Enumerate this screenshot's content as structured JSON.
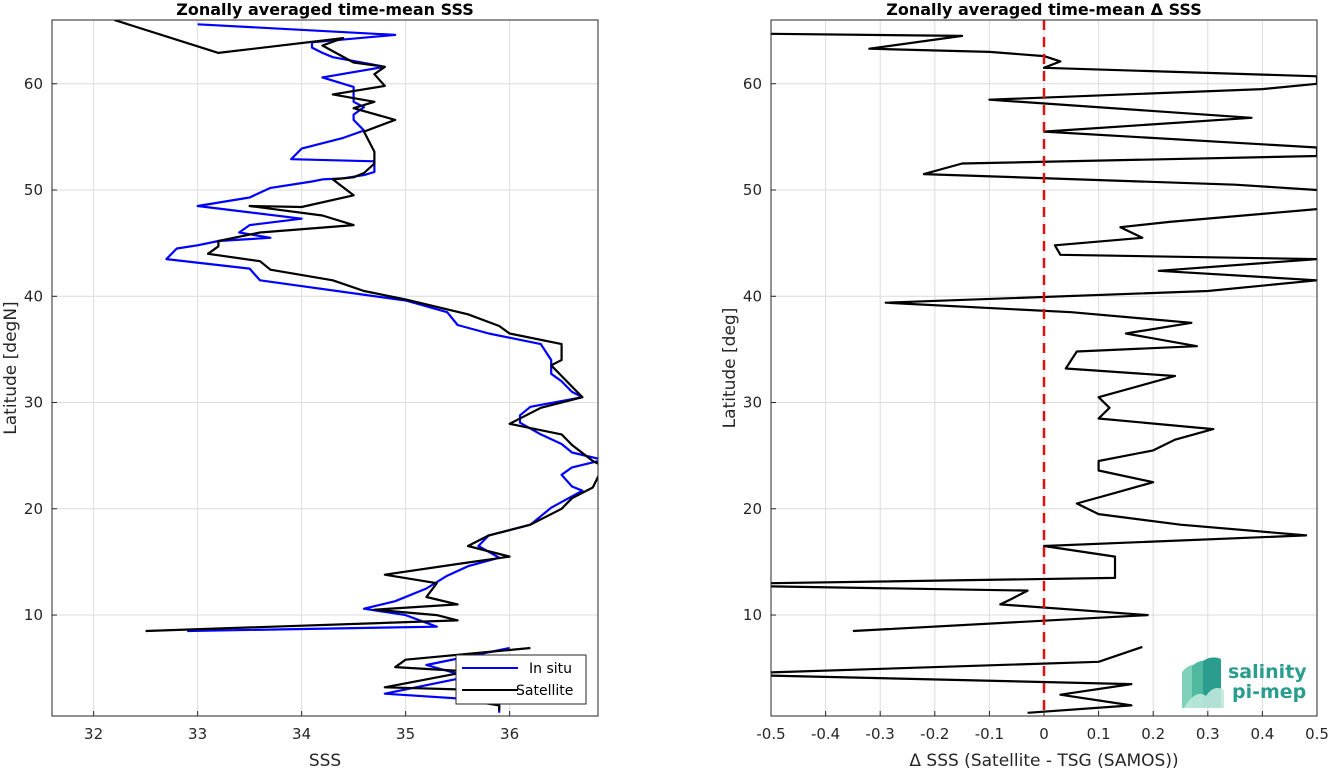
{
  "chart_data": [
    {
      "type": "line",
      "title": "Zonally averaged time-mean SSS",
      "xlabel": "SSS",
      "ylabel": "Latitude [degN]",
      "xlim": [
        31.6,
        36.85
      ],
      "ylim": [
        0.5,
        66
      ],
      "xticks": [
        "32",
        "33",
        "34",
        "35",
        "36"
      ],
      "yticks": [
        "10",
        "20",
        "30",
        "40",
        "50",
        "60"
      ],
      "grid": true,
      "legend": "bottom-right",
      "series": [
        {
          "name": "In situ",
          "color": "#0000ff",
          "segments": [
            [
              [
                33.0,
                65.6
              ],
              [
                34.9,
                64.6
              ],
              [
                34.1,
                63.9
              ],
              [
                34.1,
                63.4
              ],
              [
                34.2,
                62.9
              ],
              [
                34.3,
                62.5
              ],
              [
                34.8,
                61.6
              ],
              [
                34.2,
                60.6
              ],
              [
                34.5,
                59.7
              ],
              [
                34.5,
                58.3
              ],
              [
                34.6,
                57.8
              ],
              [
                34.5,
                57.1
              ],
              [
                34.5,
                56.6
              ],
              [
                34.6,
                55.6
              ],
              [
                34.4,
                54.9
              ],
              [
                34.0,
                53.9
              ],
              [
                33.9,
                52.9
              ],
              [
                34.7,
                52.7
              ],
              [
                34.7,
                51.7
              ],
              [
                34.6,
                51.4
              ],
              [
                34.4,
                51.1
              ],
              [
                34.2,
                51.0
              ],
              [
                34.1,
                50.8
              ],
              [
                33.7,
                50.2
              ],
              [
                33.5,
                49.3
              ],
              [
                33.0,
                48.5
              ],
              [
                34.0,
                47.3
              ],
              [
                33.5,
                46.7
              ],
              [
                33.4,
                46.0
              ],
              [
                33.7,
                45.5
              ],
              [
                33.2,
                45.2
              ],
              [
                33.0,
                44.8
              ],
              [
                32.8,
                44.5
              ],
              [
                32.7,
                43.5
              ],
              [
                33.5,
                42.6
              ],
              [
                33.6,
                41.5
              ],
              [
                35.0,
                39.6
              ],
              [
                35.4,
                38.5
              ],
              [
                35.5,
                37.3
              ],
              [
                35.8,
                36.5
              ],
              [
                36.0,
                36.1
              ],
              [
                36.3,
                35.5
              ],
              [
                36.4,
                34.0
              ],
              [
                36.4,
                33.2
              ],
              [
                36.4,
                32.7
              ],
              [
                36.5,
                32.0
              ],
              [
                36.6,
                31.0
              ],
              [
                36.7,
                30.5
              ],
              [
                36.2,
                29.6
              ],
              [
                36.1,
                28.8
              ],
              [
                36.1,
                28.1
              ],
              [
                36.3,
                27.0
              ],
              [
                36.5,
                26.1
              ],
              [
                36.6,
                25.3
              ],
              [
                36.9,
                24.6
              ],
              [
                36.6,
                23.9
              ],
              [
                36.5,
                23.2
              ],
              [
                36.6,
                22.1
              ],
              [
                36.7,
                21.7
              ],
              [
                36.4,
                20.1
              ],
              [
                36.2,
                18.5
              ],
              [
                35.8,
                17.5
              ],
              [
                35.7,
                16.5
              ],
              [
                35.9,
                15.4
              ],
              [
                35.6,
                14.6
              ],
              [
                35.4,
                13.7
              ],
              [
                35.2,
                12.5
              ],
              [
                34.9,
                11.3
              ],
              [
                34.6,
                10.6
              ],
              [
                35.0,
                10.0
              ],
              [
                35.3,
                8.9
              ],
              [
                32.9,
                8.5
              ]
            ],
            [
              [
                36.0,
                6.9
              ],
              [
                35.2,
                5.3
              ],
              [
                35.6,
                4.2
              ],
              [
                34.8,
                2.6
              ],
              [
                35.9,
                1.9
              ],
              [
                35.9,
                1.3
              ],
              [
                35.9,
                0.8
              ]
            ]
          ]
        },
        {
          "name": "Satellite",
          "color": "#000000",
          "segments": [
            [
              [
                32.2,
                66.0
              ],
              [
                33.2,
                62.9
              ],
              [
                34.4,
                64.3
              ],
              [
                34.2,
                63.6
              ],
              [
                34.5,
                62.0
              ],
              [
                34.8,
                61.6
              ],
              [
                34.7,
                60.9
              ],
              [
                34.8,
                59.8
              ],
              [
                34.3,
                59.0
              ],
              [
                34.7,
                58.3
              ],
              [
                34.5,
                57.7
              ],
              [
                34.9,
                56.6
              ],
              [
                34.6,
                55.5
              ],
              [
                34.7,
                53.6
              ],
              [
                34.7,
                52.5
              ],
              [
                34.6,
                51.6
              ],
              [
                34.5,
                51.2
              ],
              [
                34.3,
                51.0
              ],
              [
                34.5,
                49.5
              ],
              [
                34.0,
                48.4
              ],
              [
                33.5,
                48.5
              ],
              [
                34.2,
                47.6
              ],
              [
                34.5,
                46.7
              ],
              [
                33.6,
                46.0
              ],
              [
                33.2,
                45.2
              ],
              [
                33.2,
                44.7
              ],
              [
                33.1,
                44.0
              ],
              [
                33.6,
                43.3
              ],
              [
                33.7,
                42.5
              ],
              [
                34.3,
                41.5
              ],
              [
                34.6,
                40.5
              ],
              [
                35.0,
                39.7
              ],
              [
                35.6,
                38.3
              ],
              [
                35.9,
                37.2
              ],
              [
                36.0,
                36.5
              ],
              [
                36.5,
                35.5
              ],
              [
                36.5,
                34.0
              ],
              [
                36.4,
                33.5
              ],
              [
                36.5,
                32.5
              ],
              [
                36.6,
                31.5
              ],
              [
                36.7,
                30.5
              ],
              [
                36.3,
                29.5
              ],
              [
                36.0,
                28.0
              ],
              [
                36.5,
                27.0
              ],
              [
                36.6,
                26.0
              ],
              [
                36.8,
                24.5
              ],
              [
                36.9,
                24.0
              ],
              [
                36.8,
                22.0
              ],
              [
                36.6,
                21.0
              ],
              [
                36.5,
                20.0
              ],
              [
                36.2,
                18.5
              ],
              [
                35.8,
                17.5
              ],
              [
                35.6,
                16.5
              ],
              [
                36.0,
                15.5
              ],
              [
                35.5,
                14.8
              ],
              [
                34.8,
                13.8
              ],
              [
                35.3,
                13.0
              ],
              [
                35.2,
                11.7
              ],
              [
                35.5,
                11.0
              ],
              [
                34.7,
                10.5
              ],
              [
                35.3,
                10.0
              ],
              [
                35.5,
                9.5
              ],
              [
                32.5,
                8.5
              ]
            ],
            [
              [
                36.2,
                6.9
              ],
              [
                35.0,
                5.8
              ],
              [
                34.9,
                5.1
              ],
              [
                35.6,
                4.7
              ],
              [
                34.8,
                3.2
              ],
              [
                35.5,
                3.0
              ],
              [
                35.6,
                2.3
              ],
              [
                35.7,
                1.8
              ],
              [
                35.9,
                1.5
              ],
              [
                35.9,
                1.0
              ]
            ]
          ]
        }
      ]
    },
    {
      "type": "line",
      "title": "Zonally averaged time-mean Δ SSS",
      "xlabel": "Δ SSS (Satellite - TSG (SAMOS))",
      "ylabel": "Latitude [deg]",
      "xlim": [
        -0.5,
        0.5
      ],
      "ylim": [
        0.5,
        66
      ],
      "xticks": [
        "-0.5",
        "-0.4",
        "-0.3",
        "-0.2",
        "-0.1",
        "0",
        "0.1",
        "0.2",
        "0.3",
        "0.4",
        "0.5"
      ],
      "yticks": [
        "10",
        "20",
        "30",
        "40",
        "50",
        "60"
      ],
      "grid": true,
      "reference_line": {
        "x": 0,
        "color": "#dd1111",
        "style": "dashed"
      },
      "series": [
        {
          "color": "#000000",
          "segments": [
            [
              [
                -0.5,
                64.7
              ],
              [
                -0.15,
                64.5
              ],
              [
                -0.32,
                63.3
              ],
              [
                -0.1,
                63.0
              ],
              [
                0.0,
                62.6
              ],
              [
                0.03,
                62.1
              ],
              [
                0.0,
                61.5
              ],
              [
                0.5,
                60.7
              ],
              [
                0.5,
                60.0
              ],
              [
                0.4,
                59.5
              ],
              [
                -0.1,
                58.5
              ],
              [
                0.38,
                56.8
              ],
              [
                0.0,
                55.5
              ],
              [
                0.5,
                54.0
              ],
              [
                0.5,
                53.2
              ],
              [
                -0.15,
                52.5
              ],
              [
                -0.22,
                51.5
              ],
              [
                0.35,
                50.5
              ],
              [
                0.5,
                50.0
              ]
            ],
            [
              [
                0.5,
                48.2
              ],
              [
                0.23,
                47.0
              ],
              [
                0.14,
                46.5
              ],
              [
                0.18,
                45.5
              ],
              [
                0.02,
                44.8
              ],
              [
                0.03,
                43.9
              ],
              [
                0.5,
                43.5
              ],
              [
                0.21,
                42.4
              ],
              [
                0.5,
                41.5
              ],
              [
                0.3,
                40.5
              ],
              [
                -0.29,
                39.4
              ],
              [
                0.05,
                38.5
              ],
              [
                0.27,
                37.5
              ],
              [
                0.15,
                36.5
              ],
              [
                0.28,
                35.3
              ],
              [
                0.06,
                34.8
              ],
              [
                0.04,
                33.2
              ],
              [
                0.24,
                32.5
              ],
              [
                0.1,
                30.5
              ],
              [
                0.12,
                29.5
              ],
              [
                0.1,
                28.5
              ],
              [
                0.31,
                27.5
              ],
              [
                0.24,
                26.5
              ],
              [
                0.2,
                25.5
              ],
              [
                0.1,
                24.5
              ],
              [
                0.1,
                23.6
              ],
              [
                0.2,
                22.5
              ],
              [
                0.13,
                21.5
              ],
              [
                0.06,
                20.5
              ],
              [
                0.1,
                19.5
              ],
              [
                0.25,
                18.5
              ],
              [
                0.48,
                17.5
              ],
              [
                0.0,
                16.5
              ],
              [
                0.13,
                15.5
              ],
              [
                0.13,
                13.5
              ],
              [
                -0.5,
                13.0
              ]
            ],
            [
              [
                -0.5,
                12.7
              ],
              [
                -0.03,
                12.3
              ],
              [
                -0.06,
                11.5
              ],
              [
                -0.08,
                11.0
              ],
              [
                0.19,
                10.0
              ],
              [
                -0.35,
                8.5
              ]
            ],
            [
              [
                0.18,
                7.0
              ],
              [
                0.1,
                5.6
              ],
              [
                -0.5,
                4.6
              ]
            ],
            [
              [
                -0.5,
                4.3
              ],
              [
                0.16,
                3.5
              ],
              [
                0.03,
                2.5
              ],
              [
                0.16,
                1.5
              ],
              [
                -0.03,
                0.8
              ]
            ]
          ]
        }
      ]
    }
  ],
  "logo": {
    "line1": "salinity",
    "line2": "pi-mep"
  }
}
